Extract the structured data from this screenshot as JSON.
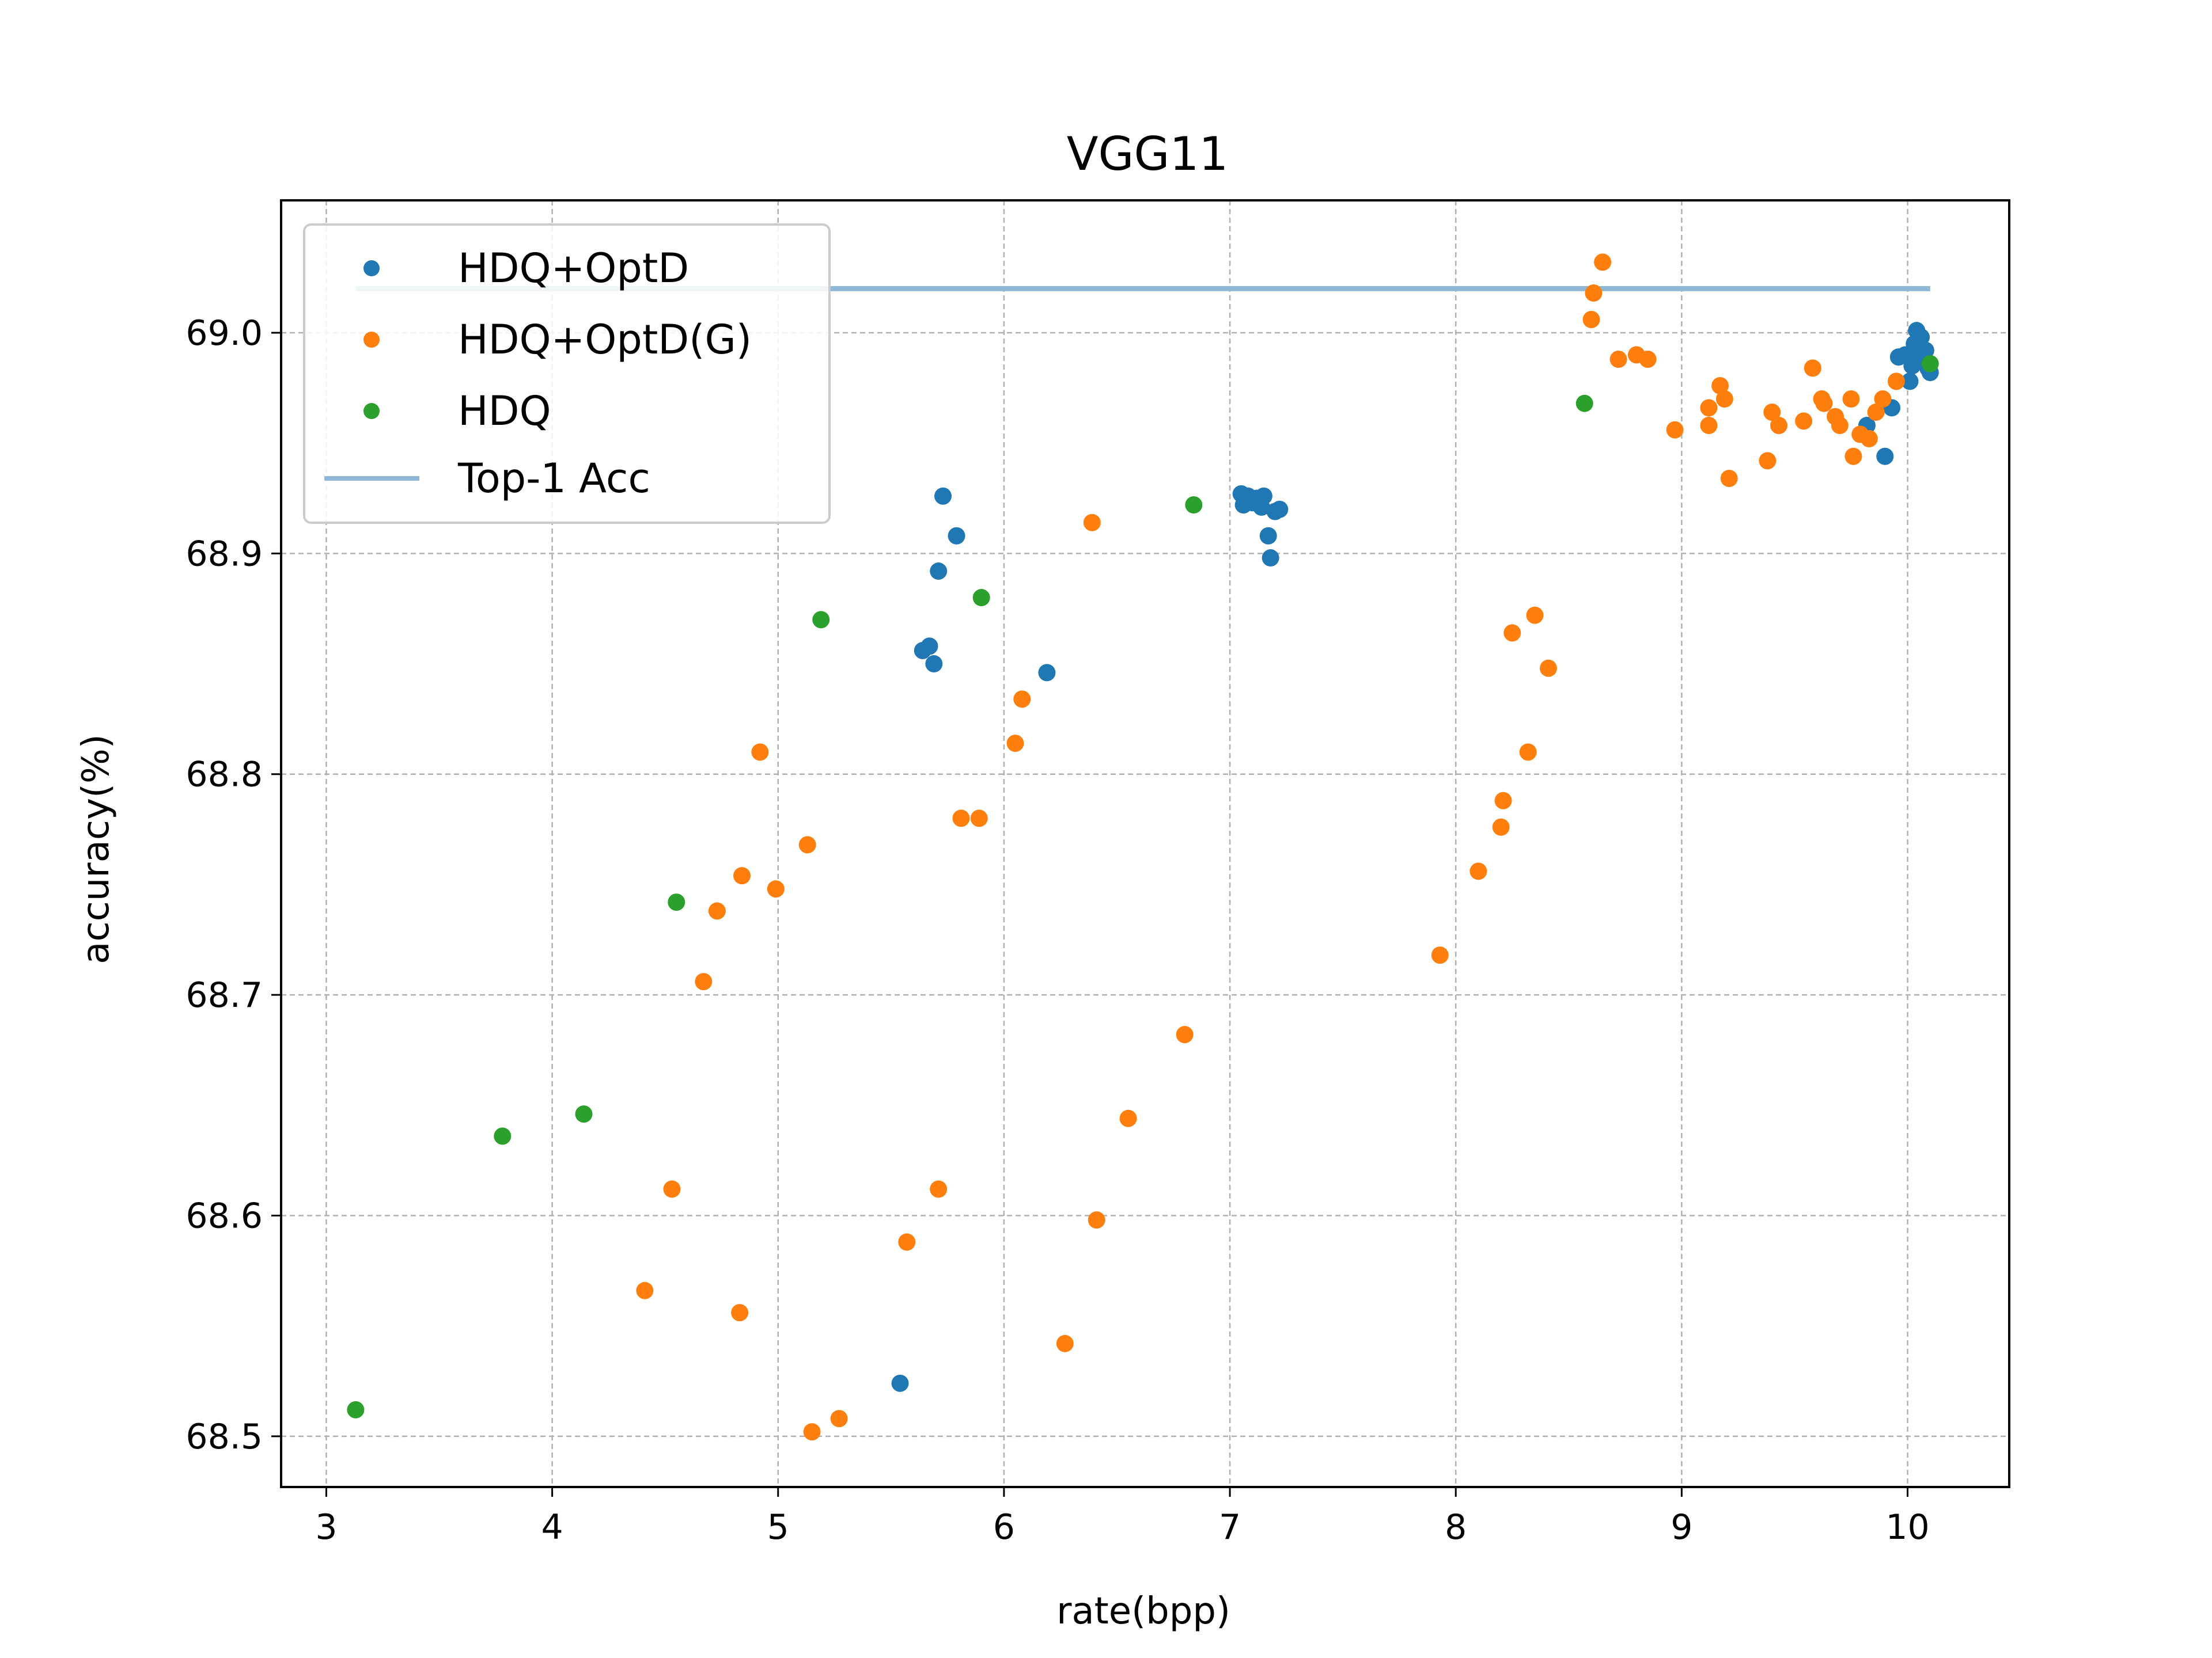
{
  "chart_data": {
    "type": "scatter",
    "title": "VGG11",
    "xlabel": "rate(bpp)",
    "ylabel": "accuracy(%)",
    "xlim": [
      2.8,
      10.45
    ],
    "ylim": [
      68.477,
      69.06
    ],
    "xticks": [
      3,
      4,
      5,
      6,
      7,
      8,
      9,
      10
    ],
    "yticks": [
      68.5,
      68.6,
      68.7,
      68.8,
      68.9,
      69.0
    ],
    "ytick_labels": [
      "68.5",
      "68.6",
      "68.7",
      "68.8",
      "68.9",
      "69.0"
    ],
    "grid": true,
    "legend_position": "top-left",
    "series": [
      {
        "name": "HDQ+OptD",
        "color": "#1f77b4",
        "points": [
          [
            5.54,
            68.524
          ],
          [
            5.64,
            68.856
          ],
          [
            5.67,
            68.858
          ],
          [
            5.69,
            68.85
          ],
          [
            5.71,
            68.892
          ],
          [
            5.73,
            68.926
          ],
          [
            5.79,
            68.908
          ],
          [
            6.19,
            68.846
          ],
          [
            7.05,
            68.927
          ],
          [
            7.06,
            68.922
          ],
          [
            7.08,
            68.926
          ],
          [
            7.1,
            68.923
          ],
          [
            7.12,
            68.925
          ],
          [
            7.14,
            68.921
          ],
          [
            7.15,
            68.926
          ],
          [
            7.17,
            68.908
          ],
          [
            7.18,
            68.898
          ],
          [
            7.2,
            68.919
          ],
          [
            7.22,
            68.92
          ],
          [
            9.82,
            68.958
          ],
          [
            9.9,
            68.944
          ],
          [
            9.93,
            68.966
          ],
          [
            9.96,
            68.989
          ],
          [
            9.99,
            68.99
          ],
          [
            10.01,
            68.978
          ],
          [
            10.02,
            68.985
          ],
          [
            10.03,
            68.995
          ],
          [
            10.04,
            69.001
          ],
          [
            10.05,
            68.992
          ],
          [
            10.06,
            68.998
          ],
          [
            10.07,
            68.988
          ],
          [
            10.08,
            68.992
          ],
          [
            10.09,
            68.984
          ],
          [
            10.1,
            68.982
          ]
        ]
      },
      {
        "name": "HDQ+OptD(G)",
        "color": "#ff7f0e",
        "points": [
          [
            4.41,
            68.566
          ],
          [
            4.53,
            68.612
          ],
          [
            4.67,
            68.706
          ],
          [
            4.73,
            68.738
          ],
          [
            4.83,
            68.556
          ],
          [
            4.84,
            68.754
          ],
          [
            4.92,
            68.81
          ],
          [
            4.99,
            68.748
          ],
          [
            5.13,
            68.768
          ],
          [
            5.15,
            68.502
          ],
          [
            5.27,
            68.508
          ],
          [
            5.57,
            68.588
          ],
          [
            5.71,
            68.612
          ],
          [
            5.81,
            68.78
          ],
          [
            5.89,
            68.78
          ],
          [
            6.05,
            68.814
          ],
          [
            6.08,
            68.834
          ],
          [
            6.27,
            68.542
          ],
          [
            6.39,
            68.914
          ],
          [
            6.41,
            68.598
          ],
          [
            6.55,
            68.644
          ],
          [
            6.8,
            68.682
          ],
          [
            7.93,
            68.718
          ],
          [
            8.1,
            68.756
          ],
          [
            8.2,
            68.776
          ],
          [
            8.21,
            68.788
          ],
          [
            8.25,
            68.864
          ],
          [
            8.32,
            68.81
          ],
          [
            8.35,
            68.872
          ],
          [
            8.41,
            68.848
          ],
          [
            8.6,
            69.006
          ],
          [
            8.61,
            69.018
          ],
          [
            8.65,
            69.032
          ],
          [
            8.72,
            68.988
          ],
          [
            8.8,
            68.99
          ],
          [
            8.85,
            68.988
          ],
          [
            8.97,
            68.956
          ],
          [
            9.12,
            68.966
          ],
          [
            9.12,
            68.958
          ],
          [
            9.17,
            68.976
          ],
          [
            9.19,
            68.97
          ],
          [
            9.21,
            68.934
          ],
          [
            9.38,
            68.942
          ],
          [
            9.4,
            68.964
          ],
          [
            9.43,
            68.958
          ],
          [
            9.54,
            68.96
          ],
          [
            9.58,
            68.984
          ],
          [
            9.62,
            68.97
          ],
          [
            9.63,
            68.968
          ],
          [
            9.68,
            68.962
          ],
          [
            9.7,
            68.958
          ],
          [
            9.75,
            68.97
          ],
          [
            9.76,
            68.944
          ],
          [
            9.79,
            68.954
          ],
          [
            9.83,
            68.952
          ],
          [
            9.86,
            68.964
          ],
          [
            9.89,
            68.97
          ],
          [
            9.95,
            68.978
          ]
        ]
      },
      {
        "name": "HDQ",
        "color": "#2ca02c",
        "points": [
          [
            3.13,
            68.512
          ],
          [
            3.78,
            68.636
          ],
          [
            4.14,
            68.646
          ],
          [
            4.55,
            68.742
          ],
          [
            5.19,
            68.87
          ],
          [
            5.9,
            68.88
          ],
          [
            6.84,
            68.922
          ],
          [
            8.57,
            68.968
          ],
          [
            10.1,
            68.986
          ]
        ]
      }
    ],
    "reference_line": {
      "name": "Top-1 Acc",
      "y": 69.02,
      "x_range": [
        3.13,
        10.1
      ],
      "color": "#8fb8d8"
    }
  }
}
